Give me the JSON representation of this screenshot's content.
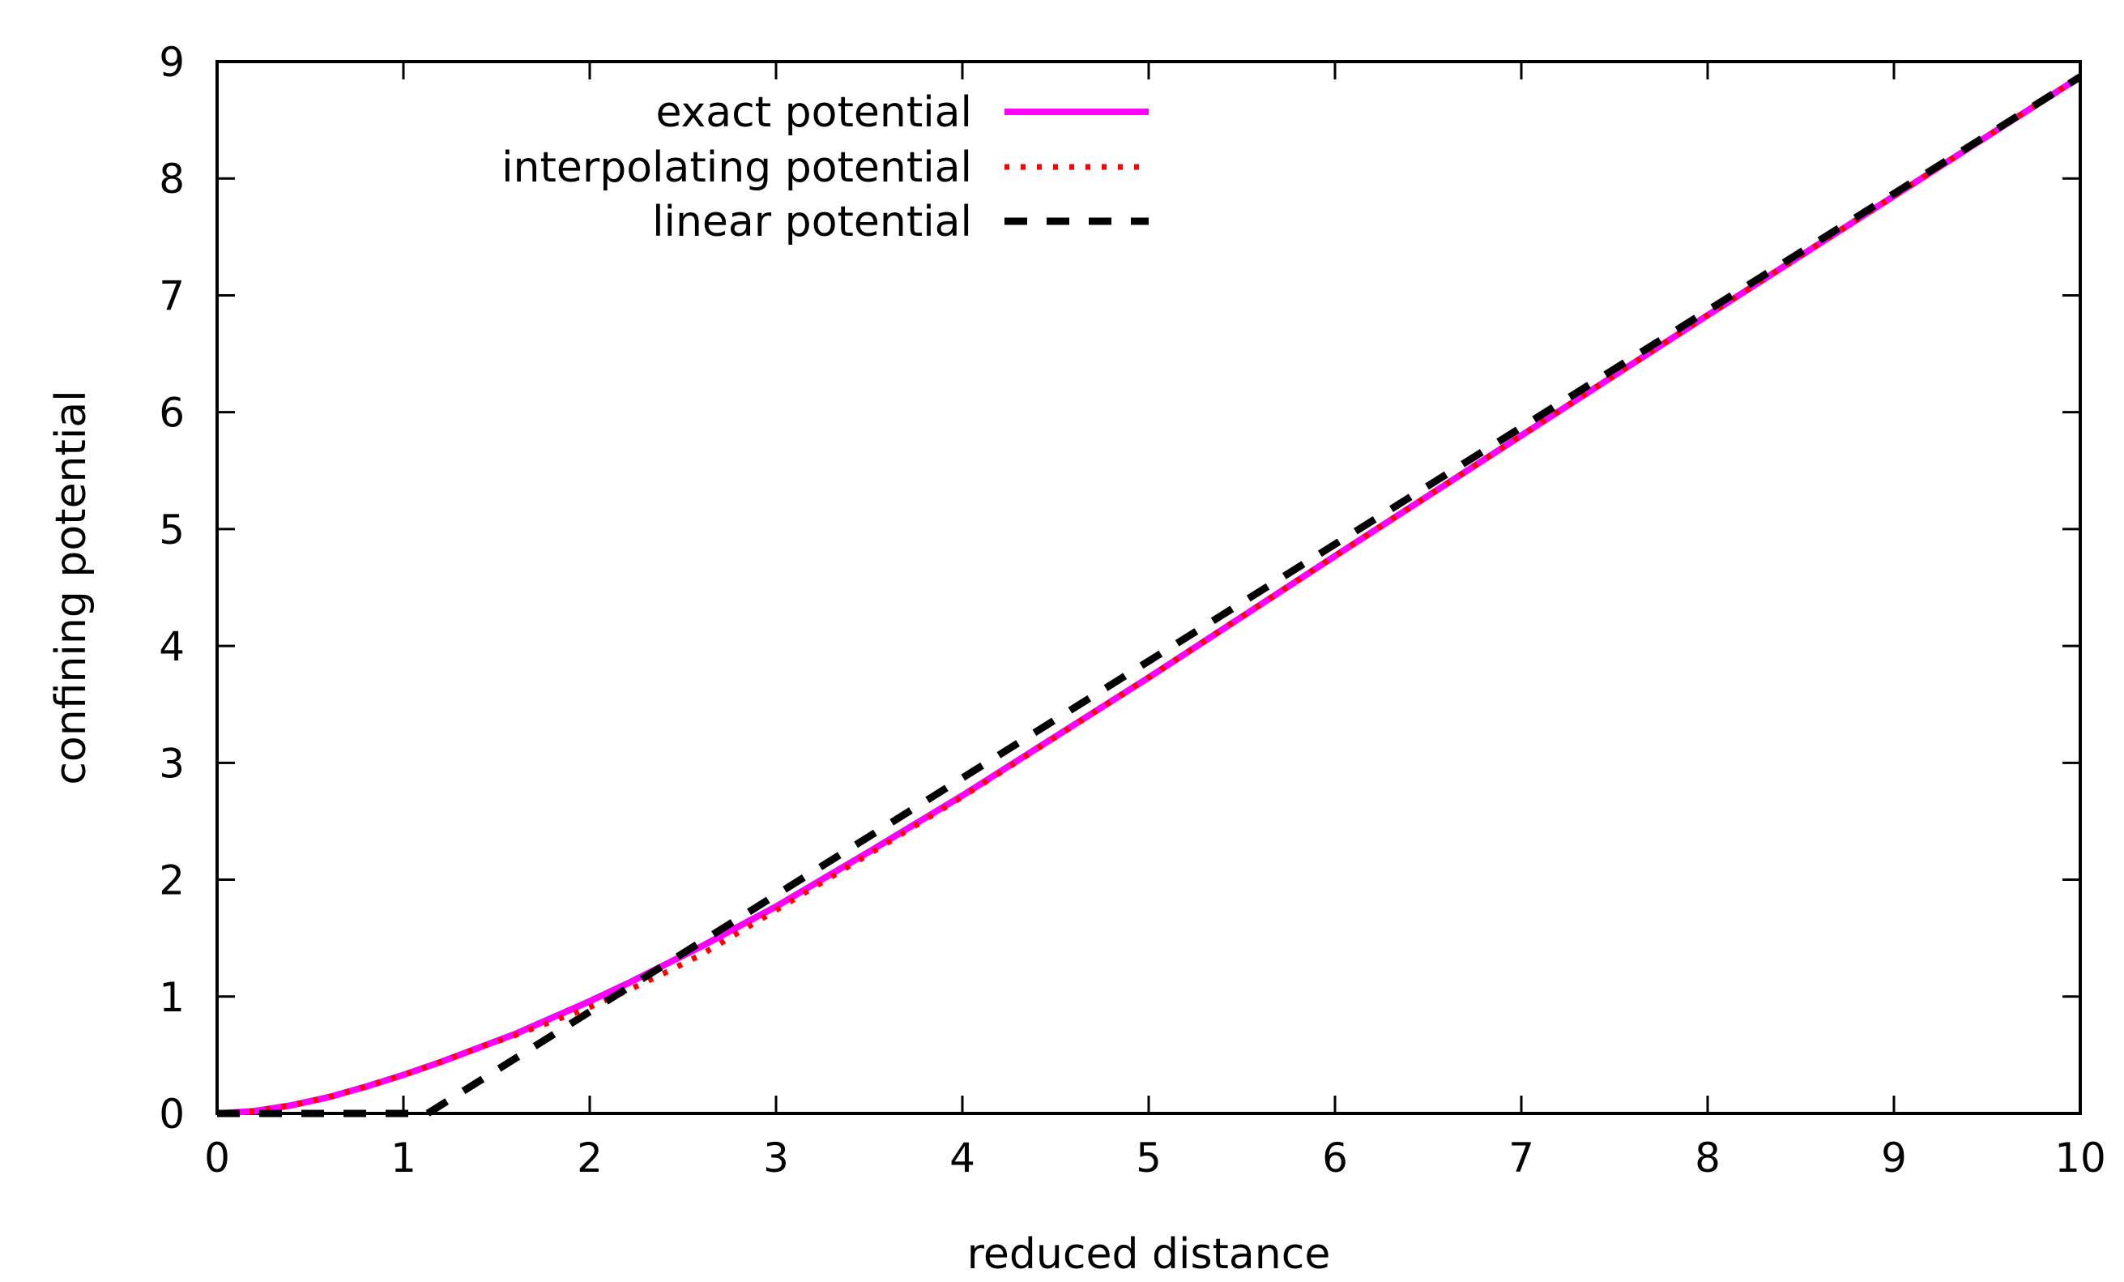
{
  "chart_data": {
    "type": "line",
    "title": "",
    "xlabel": "reduced distance",
    "ylabel": "confining potential",
    "xlim": [
      0,
      10
    ],
    "ylim": [
      0,
      9
    ],
    "xticks": [
      0,
      1,
      2,
      3,
      4,
      5,
      6,
      7,
      8,
      9,
      10
    ],
    "yticks": [
      0,
      1,
      2,
      3,
      4,
      5,
      6,
      7,
      8,
      9
    ],
    "grid": false,
    "legend_position": "top-left",
    "series": [
      {
        "name": "exact potential",
        "color": "#ff00ff",
        "style": "solid",
        "x": [
          0,
          0.2,
          0.4,
          0.6,
          0.8,
          1.0,
          1.2,
          1.4,
          1.6,
          1.8,
          2.0,
          2.2,
          2.4,
          2.6,
          2.8,
          3.0,
          3.5,
          4.0,
          5.0,
          6.0,
          7.0,
          8.0,
          9.0,
          10.0
        ],
        "y": [
          0,
          0.02,
          0.07,
          0.14,
          0.23,
          0.33,
          0.44,
          0.56,
          0.68,
          0.82,
          0.96,
          1.11,
          1.27,
          1.43,
          1.6,
          1.77,
          2.24,
          2.72,
          3.73,
          4.77,
          5.8,
          6.83,
          7.85,
          8.87
        ]
      },
      {
        "name": "interpolating  potential",
        "color": "#ff0000",
        "style": "dotted",
        "x": [
          0,
          0.2,
          0.4,
          0.6,
          0.8,
          1.0,
          1.2,
          1.4,
          1.6,
          1.8,
          2.0,
          2.2,
          2.4,
          2.6,
          2.8,
          3.0,
          3.5,
          4.0,
          5.0,
          6.0,
          7.0,
          8.0,
          9.0,
          10.0
        ],
        "y": [
          0,
          0.02,
          0.07,
          0.14,
          0.23,
          0.33,
          0.44,
          0.56,
          0.67,
          0.79,
          0.91,
          1.05,
          1.2,
          1.36,
          1.55,
          1.74,
          2.22,
          2.71,
          3.73,
          4.77,
          5.8,
          6.83,
          7.85,
          8.87
        ]
      },
      {
        "name": "linear potential",
        "color": "#000000",
        "style": "dashed",
        "x": [
          0,
          1.0,
          1.13,
          10.0
        ],
        "y": [
          0,
          0,
          0,
          8.87
        ]
      }
    ]
  }
}
